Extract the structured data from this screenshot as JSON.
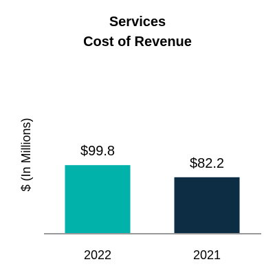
{
  "chart_data": {
    "type": "bar",
    "title": "Services",
    "subtitle": "Cost of Revenue",
    "xlabel": "",
    "ylabel": "$ (In Millions)",
    "categories": [
      "2022",
      "2021"
    ],
    "values": [
      99.8,
      82.2
    ],
    "data_labels": [
      "$99.8",
      "$82.2"
    ],
    "bar_colors": [
      "#00b2a9",
      "#0c2d44"
    ],
    "axis_color": "#999999",
    "ylim": [
      0,
      100
    ],
    "grid": false,
    "legend": "none"
  }
}
